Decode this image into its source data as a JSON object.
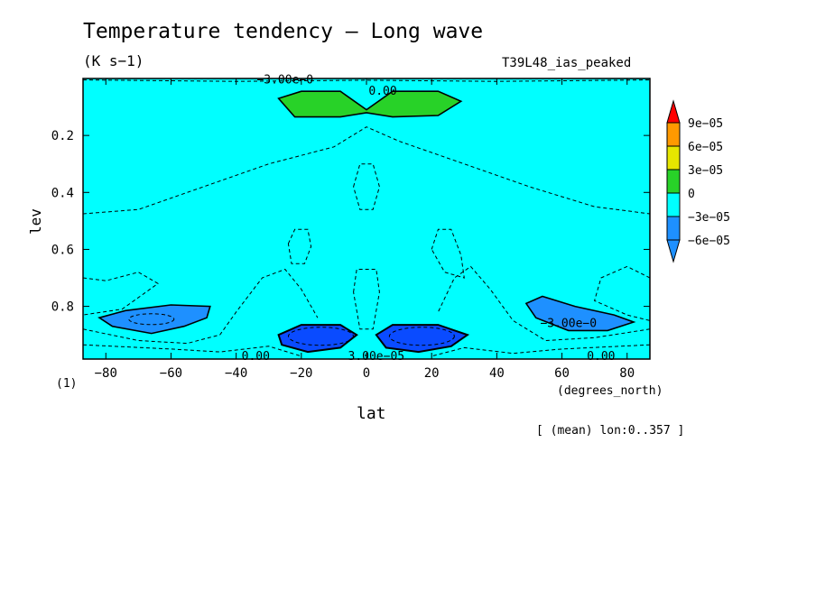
{
  "header": {
    "title": "Temperature tendency — Long wave",
    "units": "(K s−1)",
    "run_name": "T39L48_ias_peaked"
  },
  "footer": {
    "panel_id": "(1)",
    "x_units": "(degrees_north)",
    "averaging_note": "[ (mean) lon:0..357 ]"
  },
  "colors": {
    "level_neg_6e-05": "#1e90ff",
    "level_neg_3e-05": "#00ffff",
    "level_0": "#28d228",
    "level_3e-05": "#e6e600",
    "level_6e-05": "#ff9900",
    "level_9e-05": "#ff0000",
    "deep_min": "#0a4bff"
  },
  "chart_data": {
    "type": "heatmap",
    "subtype": "contour",
    "xlabel": "lat",
    "ylabel": "lev",
    "xlim": [
      -87,
      87
    ],
    "ylim": [
      0.0,
      0.985
    ],
    "y_inverted": true,
    "grid": false,
    "legend_placement": "right",
    "x_ticks": [
      -80,
      -60,
      -40,
      -20,
      0,
      20,
      40,
      60,
      80
    ],
    "x_tick_labels": [
      "−80",
      "−60",
      "−40",
      "−20",
      "0",
      "20",
      "40",
      "60",
      "80"
    ],
    "y_ticks": [
      0.2,
      0.4,
      0.6,
      0.8
    ],
    "y_tick_labels": [
      "0.2",
      "0.4",
      "0.6",
      "0.8"
    ],
    "colorbar": {
      "labels": [
        "9e−05",
        "6e−05",
        "3e−05",
        "0",
        "−3e−05",
        "−6e−05"
      ]
    },
    "contour_labels": [
      {
        "text": "0.00",
        "lat": 5,
        "lev": 0.045
      },
      {
        "text": "−3.00e−0",
        "lat": -25,
        "lev": 0.005
      },
      {
        "text": "−3.00e−0",
        "lat": 62,
        "lev": 0.86
      },
      {
        "text": "0.00",
        "lat": -34,
        "lev": 0.975
      },
      {
        "text": "3.00e−05",
        "lat": 3,
        "lev": 0.975
      },
      {
        "text": "0.00",
        "lat": 72,
        "lev": 0.975
      }
    ],
    "regions": [
      {
        "name": "upper-positive-cell",
        "level": "0 to 3e-05",
        "lat_range": [
          -27,
          29
        ],
        "lev_range": [
          0.04,
          0.14
        ]
      },
      {
        "name": "sh-negative-cell",
        "level": "below -3e-05",
        "lat_range": [
          -82,
          -47
        ],
        "lev_range": [
          0.78,
          0.9
        ]
      },
      {
        "name": "nh-negative-cell",
        "level": "below -3e-05",
        "lat_range": [
          48,
          82
        ],
        "lev_range": [
          0.76,
          0.9
        ]
      },
      {
        "name": "sh-minimum",
        "level": "below -6e-05",
        "lat_range": [
          -27,
          -2
        ],
        "lev_range": [
          0.86,
          0.96
        ]
      },
      {
        "name": "nh-minimum",
        "level": "below -6e-05",
        "lat_range": [
          2,
          31
        ],
        "lev_range": [
          0.86,
          0.96
        ]
      }
    ]
  }
}
